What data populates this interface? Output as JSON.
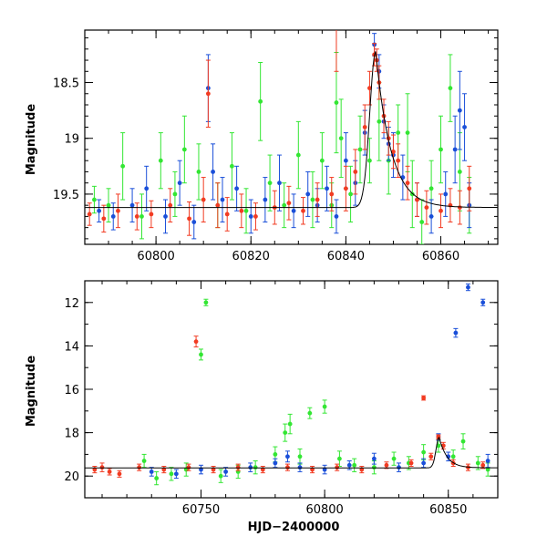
{
  "chart_data": [
    {
      "type": "scatter",
      "panel": "top",
      "xlabel": "",
      "ylabel": "Magnitude",
      "xlim": [
        60785,
        60872
      ],
      "ylim": [
        19.95,
        18.03
      ],
      "y_inverted": true,
      "xticks_major": [
        60800,
        60820,
        60840,
        60860
      ],
      "yticks_major": [
        18.5,
        19,
        19.5
      ],
      "colors": {
        "green": "#33e633",
        "blue": "#1a4fd9",
        "red": "#f23b22"
      },
      "series": [
        {
          "color": "green",
          "points": [
            [
              60787,
              19.55,
              0.12
            ],
            [
              60790,
              19.6,
              0.15
            ],
            [
              60793,
              19.25,
              0.3
            ],
            [
              60797,
              19.7,
              0.2
            ],
            [
              60801,
              19.2,
              0.25
            ],
            [
              60804,
              19.5,
              0.2
            ],
            [
              60806,
              19.1,
              0.3
            ],
            [
              60809,
              19.3,
              0.25
            ],
            [
              60813,
              19.6,
              0.2
            ],
            [
              60816,
              19.25,
              0.3
            ],
            [
              60819,
              19.65,
              0.2
            ],
            [
              60822,
              18.67,
              0.35
            ],
            [
              60824,
              19.4,
              0.25
            ],
            [
              60827,
              19.6,
              0.2
            ],
            [
              60830,
              19.15,
              0.3
            ],
            [
              60833,
              19.55,
              0.25
            ],
            [
              60835,
              19.2,
              0.25
            ],
            [
              60837,
              19.6,
              0.2
            ],
            [
              60838,
              18.68,
              0.45
            ],
            [
              60839,
              19.0,
              0.35
            ],
            [
              60841,
              19.5,
              0.25
            ],
            [
              60843,
              19.1,
              0.3
            ],
            [
              60845,
              19.2,
              0.2
            ],
            [
              60847,
              18.85,
              0.35
            ],
            [
              60849,
              19.2,
              0.3
            ],
            [
              60851,
              18.95,
              0.25
            ],
            [
              60853,
              18.95,
              0.35
            ],
            [
              60854,
              19.5,
              0.3
            ],
            [
              60856,
              19.75,
              0.2
            ],
            [
              60858,
              19.45,
              0.25
            ],
            [
              60860,
              19.1,
              0.3
            ],
            [
              60862,
              18.55,
              0.3
            ],
            [
              60864,
              19.3,
              0.35
            ],
            [
              60866,
              19.6,
              0.25
            ]
          ]
        },
        {
          "color": "blue",
          "points": [
            [
              60788,
              19.65,
              0.1
            ],
            [
              60791,
              19.7,
              0.12
            ],
            [
              60795,
              19.6,
              0.15
            ],
            [
              60798,
              19.45,
              0.2
            ],
            [
              60802,
              19.7,
              0.15
            ],
            [
              60805,
              19.4,
              0.2
            ],
            [
              60808,
              19.75,
              0.15
            ],
            [
              60811,
              18.55,
              0.3
            ],
            [
              60812,
              19.3,
              0.25
            ],
            [
              60814,
              19.55,
              0.2
            ],
            [
              60817,
              19.45,
              0.2
            ],
            [
              60820,
              19.7,
              0.15
            ],
            [
              60823,
              19.55,
              0.2
            ],
            [
              60826,
              19.4,
              0.25
            ],
            [
              60829,
              19.65,
              0.15
            ],
            [
              60832,
              19.5,
              0.2
            ],
            [
              60834,
              19.6,
              0.15
            ],
            [
              60836,
              19.45,
              0.2
            ],
            [
              60838,
              19.7,
              0.15
            ],
            [
              60840,
              19.2,
              0.25
            ],
            [
              60842,
              19.4,
              0.2
            ],
            [
              60844,
              18.95,
              0.2
            ],
            [
              60846,
              18.16,
              0.1
            ],
            [
              60847,
              18.4,
              0.15
            ],
            [
              60848,
              18.85,
              0.15
            ],
            [
              60849,
              19.05,
              0.15
            ],
            [
              60850,
              19.15,
              0.2
            ],
            [
              60852,
              19.35,
              0.2
            ],
            [
              60855,
              19.55,
              0.15
            ],
            [
              60858,
              19.7,
              0.15
            ],
            [
              60861,
              19.5,
              0.2
            ],
            [
              60863,
              19.1,
              0.3
            ],
            [
              60864,
              18.75,
              0.35
            ],
            [
              60865,
              18.9,
              0.3
            ],
            [
              60866,
              19.6,
              0.2
            ]
          ]
        },
        {
          "color": "red",
          "points": [
            [
              60786,
              19.68,
              0.1
            ],
            [
              60789,
              19.72,
              0.12
            ],
            [
              60792,
              19.65,
              0.15
            ],
            [
              60796,
              19.7,
              0.12
            ],
            [
              60799,
              19.68,
              0.12
            ],
            [
              60803,
              19.6,
              0.15
            ],
            [
              60807,
              19.72,
              0.15
            ],
            [
              60810,
              19.55,
              0.2
            ],
            [
              60811,
              18.6,
              0.3
            ],
            [
              60813,
              19.6,
              0.2
            ],
            [
              60815,
              19.68,
              0.15
            ],
            [
              60818,
              19.65,
              0.15
            ],
            [
              60821,
              19.7,
              0.12
            ],
            [
              60825,
              19.62,
              0.15
            ],
            [
              60828,
              19.58,
              0.15
            ],
            [
              60831,
              19.65,
              0.12
            ],
            [
              60834,
              19.55,
              0.15
            ],
            [
              60837,
              19.5,
              0.15
            ],
            [
              60838,
              18.0,
              0.4
            ],
            [
              60840,
              19.45,
              0.2
            ],
            [
              60842,
              19.3,
              0.2
            ],
            [
              60844,
              18.9,
              0.2
            ],
            [
              60845,
              18.55,
              0.15
            ],
            [
              60846,
              18.25,
              0.1
            ],
            [
              60846.5,
              18.3,
              0.1
            ],
            [
              60847,
              18.5,
              0.15
            ],
            [
              60848,
              18.8,
              0.15
            ],
            [
              60849,
              19.0,
              0.15
            ],
            [
              60850,
              19.12,
              0.15
            ],
            [
              60851,
              19.2,
              0.15
            ],
            [
              60853,
              19.4,
              0.15
            ],
            [
              60855,
              19.55,
              0.15
            ],
            [
              60857,
              19.62,
              0.15
            ],
            [
              60860,
              19.65,
              0.15
            ],
            [
              60862,
              19.6,
              0.15
            ],
            [
              60864,
              19.62,
              0.15
            ],
            [
              60866,
              19.45,
              0.2
            ]
          ]
        }
      ]
    },
    {
      "type": "scatter",
      "panel": "bottom",
      "xlabel": "HJD−2400000",
      "ylabel": "Magnitude",
      "xlim": [
        60703,
        60870
      ],
      "ylim": [
        21.0,
        11.0
      ],
      "y_inverted": true,
      "xticks_major": [
        60750,
        60800,
        60850
      ],
      "yticks_major": [
        12,
        14,
        16,
        18,
        20
      ],
      "series": [
        {
          "color": "green",
          "points": [
            [
              60727,
              19.3,
              0.3
            ],
            [
              60732,
              20.1,
              0.3
            ],
            [
              60738,
              19.9,
              0.3
            ],
            [
              60744,
              19.7,
              0.3
            ],
            [
              60750,
              14.4,
              0.25
            ],
            [
              60752,
              12.0,
              0.15
            ],
            [
              60758,
              20.0,
              0.3
            ],
            [
              60765,
              19.8,
              0.3
            ],
            [
              60772,
              19.6,
              0.3
            ],
            [
              60780,
              19.0,
              0.35
            ],
            [
              60784,
              18.0,
              0.4
            ],
            [
              60786,
              17.6,
              0.45
            ],
            [
              60790,
              19.1,
              0.35
            ],
            [
              60794,
              17.1,
              0.25
            ],
            [
              60800,
              16.8,
              0.3
            ],
            [
              60806,
              19.2,
              0.35
            ],
            [
              60812,
              19.5,
              0.3
            ],
            [
              60820,
              19.6,
              0.3
            ],
            [
              60828,
              19.2,
              0.3
            ],
            [
              60834,
              19.4,
              0.3
            ],
            [
              60840,
              18.9,
              0.35
            ],
            [
              60846,
              18.6,
              0.3
            ],
            [
              60852,
              19.1,
              0.3
            ],
            [
              60856,
              18.4,
              0.35
            ],
            [
              60862,
              19.4,
              0.3
            ],
            [
              60866,
              19.7,
              0.3
            ]
          ]
        },
        {
          "color": "blue",
          "points": [
            [
              60730,
              19.8,
              0.2
            ],
            [
              60740,
              19.9,
              0.2
            ],
            [
              60750,
              19.7,
              0.2
            ],
            [
              60760,
              19.8,
              0.2
            ],
            [
              60770,
              19.6,
              0.2
            ],
            [
              60780,
              19.4,
              0.2
            ],
            [
              60785,
              19.1,
              0.25
            ],
            [
              60790,
              19.6,
              0.2
            ],
            [
              60800,
              19.7,
              0.2
            ],
            [
              60810,
              19.5,
              0.2
            ],
            [
              60820,
              19.2,
              0.25
            ],
            [
              60830,
              19.6,
              0.2
            ],
            [
              60840,
              19.4,
              0.2
            ],
            [
              60846,
              18.2,
              0.15
            ],
            [
              60850,
              19.1,
              0.2
            ],
            [
              60853,
              13.4,
              0.2
            ],
            [
              60858,
              11.3,
              0.15
            ],
            [
              60864,
              12.0,
              0.15
            ],
            [
              60866,
              19.3,
              0.3
            ]
          ]
        },
        {
          "color": "red",
          "points": [
            [
              60707,
              19.7,
              0.15
            ],
            [
              60710,
              19.6,
              0.2
            ],
            [
              60713,
              19.8,
              0.15
            ],
            [
              60717,
              19.9,
              0.15
            ],
            [
              60748,
              13.8,
              0.25
            ],
            [
              60725,
              19.6,
              0.15
            ],
            [
              60735,
              19.7,
              0.15
            ],
            [
              60745,
              19.6,
              0.15
            ],
            [
              60755,
              19.7,
              0.15
            ],
            [
              60765,
              19.6,
              0.15
            ],
            [
              60775,
              19.7,
              0.15
            ],
            [
              60785,
              19.6,
              0.15
            ],
            [
              60795,
              19.7,
              0.15
            ],
            [
              60805,
              19.6,
              0.15
            ],
            [
              60815,
              19.7,
              0.15
            ],
            [
              60825,
              19.5,
              0.15
            ],
            [
              60835,
              19.4,
              0.15
            ],
            [
              60840,
              16.4,
              0.1
            ],
            [
              60843,
              19.1,
              0.15
            ],
            [
              60846,
              18.2,
              0.1
            ],
            [
              60848,
              18.6,
              0.15
            ],
            [
              60852,
              19.4,
              0.15
            ],
            [
              60858,
              19.6,
              0.15
            ],
            [
              60864,
              19.5,
              0.15
            ]
          ]
        }
      ]
    }
  ]
}
